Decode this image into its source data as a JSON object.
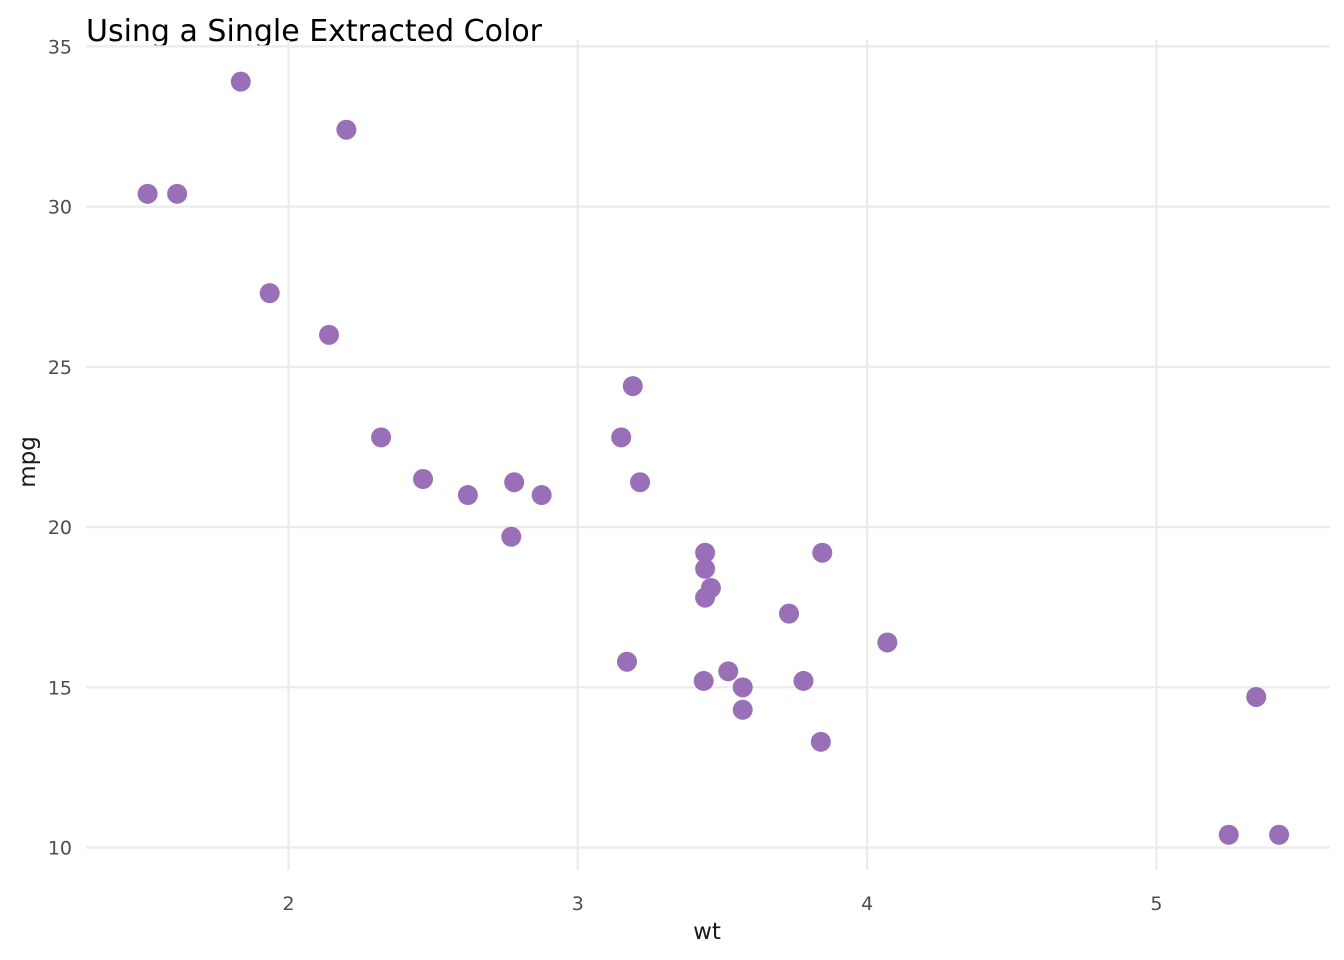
{
  "chart_data": {
    "type": "scatter",
    "title": "Using a Single Extracted Color",
    "xlabel": "wt",
    "ylabel": "mpg",
    "xlim": [
      1.3,
      5.6
    ],
    "ylim": [
      9.3,
      35.2
    ],
    "xticks": [
      2,
      3,
      4,
      5
    ],
    "yticks": [
      10,
      15,
      20,
      25,
      30,
      35
    ],
    "grid": true,
    "point_color": "#9970B8",
    "points": [
      {
        "x": 2.62,
        "y": 21.0
      },
      {
        "x": 2.875,
        "y": 21.0
      },
      {
        "x": 2.32,
        "y": 22.8
      },
      {
        "x": 3.215,
        "y": 21.4
      },
      {
        "x": 3.44,
        "y": 18.7
      },
      {
        "x": 3.46,
        "y": 18.1
      },
      {
        "x": 3.57,
        "y": 14.3
      },
      {
        "x": 3.19,
        "y": 24.4
      },
      {
        "x": 3.15,
        "y": 22.8
      },
      {
        "x": 3.44,
        "y": 19.2
      },
      {
        "x": 3.44,
        "y": 17.8
      },
      {
        "x": 4.07,
        "y": 16.4
      },
      {
        "x": 3.73,
        "y": 17.3
      },
      {
        "x": 3.78,
        "y": 15.2
      },
      {
        "x": 5.25,
        "y": 10.4
      },
      {
        "x": 5.424,
        "y": 10.4
      },
      {
        "x": 5.345,
        "y": 14.7
      },
      {
        "x": 2.2,
        "y": 32.4
      },
      {
        "x": 1.615,
        "y": 30.4
      },
      {
        "x": 1.835,
        "y": 33.9
      },
      {
        "x": 2.465,
        "y": 21.5
      },
      {
        "x": 3.52,
        "y": 15.5
      },
      {
        "x": 3.435,
        "y": 15.2
      },
      {
        "x": 3.84,
        "y": 13.3
      },
      {
        "x": 3.845,
        "y": 19.2
      },
      {
        "x": 1.935,
        "y": 27.3
      },
      {
        "x": 2.14,
        "y": 26.0
      },
      {
        "x": 1.513,
        "y": 30.4
      },
      {
        "x": 3.17,
        "y": 15.8
      },
      {
        "x": 2.77,
        "y": 19.7
      },
      {
        "x": 3.57,
        "y": 15.0
      },
      {
        "x": 2.78,
        "y": 21.4
      }
    ]
  }
}
